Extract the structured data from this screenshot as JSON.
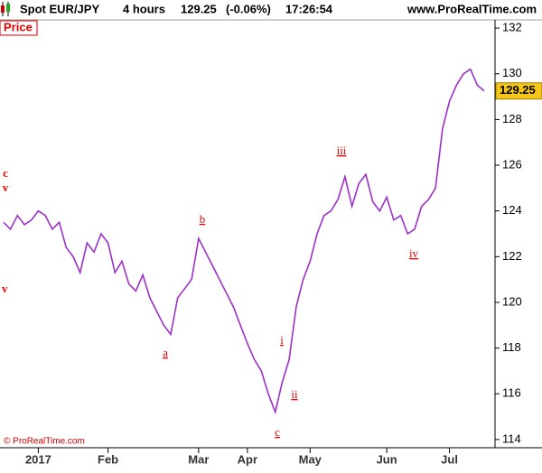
{
  "header": {
    "symbol": "Spot EUR/JPY",
    "interval": "4 hours",
    "price": "129.25",
    "change": "(-0.06%)",
    "time": "17:26:54",
    "site": "www.ProRealTime.com"
  },
  "panel_label": "Price",
  "copyright": "© ProRealTime.com",
  "chart_data": {
    "type": "line",
    "categories": [
      null,
      null,
      null,
      null,
      null,
      "2017",
      null,
      null,
      null,
      null,
      null,
      null,
      null,
      null,
      null,
      "Feb",
      null,
      null,
      null,
      null,
      null,
      null,
      null,
      null,
      null,
      null,
      null,
      null,
      "Mar",
      null,
      null,
      null,
      null,
      null,
      null,
      "Apr",
      null,
      null,
      null,
      null,
      null,
      null,
      null,
      null,
      "May",
      null,
      null,
      null,
      null,
      null,
      null,
      null,
      null,
      null,
      null,
      "Jun",
      null,
      null,
      null,
      null,
      null,
      null,
      null,
      null,
      "Jul",
      null,
      null,
      null,
      null,
      null
    ],
    "series": [
      {
        "name": "Spot EUR/JPY",
        "color": "#9b30c8",
        "values": [
          123.5,
          123.2,
          123.8,
          123.4,
          123.6,
          124.0,
          123.8,
          123.2,
          123.5,
          122.4,
          122.0,
          121.3,
          122.6,
          122.2,
          123.0,
          122.6,
          121.3,
          121.8,
          120.8,
          120.5,
          121.2,
          120.2,
          119.6,
          119.0,
          118.6,
          120.2,
          120.6,
          121.0,
          122.8,
          122.2,
          121.6,
          121.0,
          120.4,
          119.8,
          119.0,
          118.2,
          117.5,
          117.0,
          116.0,
          115.2,
          116.5,
          117.5,
          119.8,
          121.0,
          121.8,
          123.0,
          123.8,
          124.0,
          124.5,
          125.5,
          124.2,
          125.2,
          125.6,
          124.4,
          124.0,
          124.6,
          123.6,
          123.8,
          123.0,
          123.2,
          124.2,
          124.5,
          125.0,
          127.6,
          128.8,
          129.5,
          130.0,
          130.2,
          129.5,
          129.25
        ]
      }
    ],
    "ylim": [
      113.64,
      132.36
    ],
    "yticks": [
      114,
      116,
      118,
      120,
      122,
      124,
      126,
      128,
      130,
      132
    ],
    "annotations": [
      "a",
      "b",
      "c",
      "i",
      "ii",
      "iii",
      "iv",
      "c",
      "v",
      "v"
    ]
  }
}
